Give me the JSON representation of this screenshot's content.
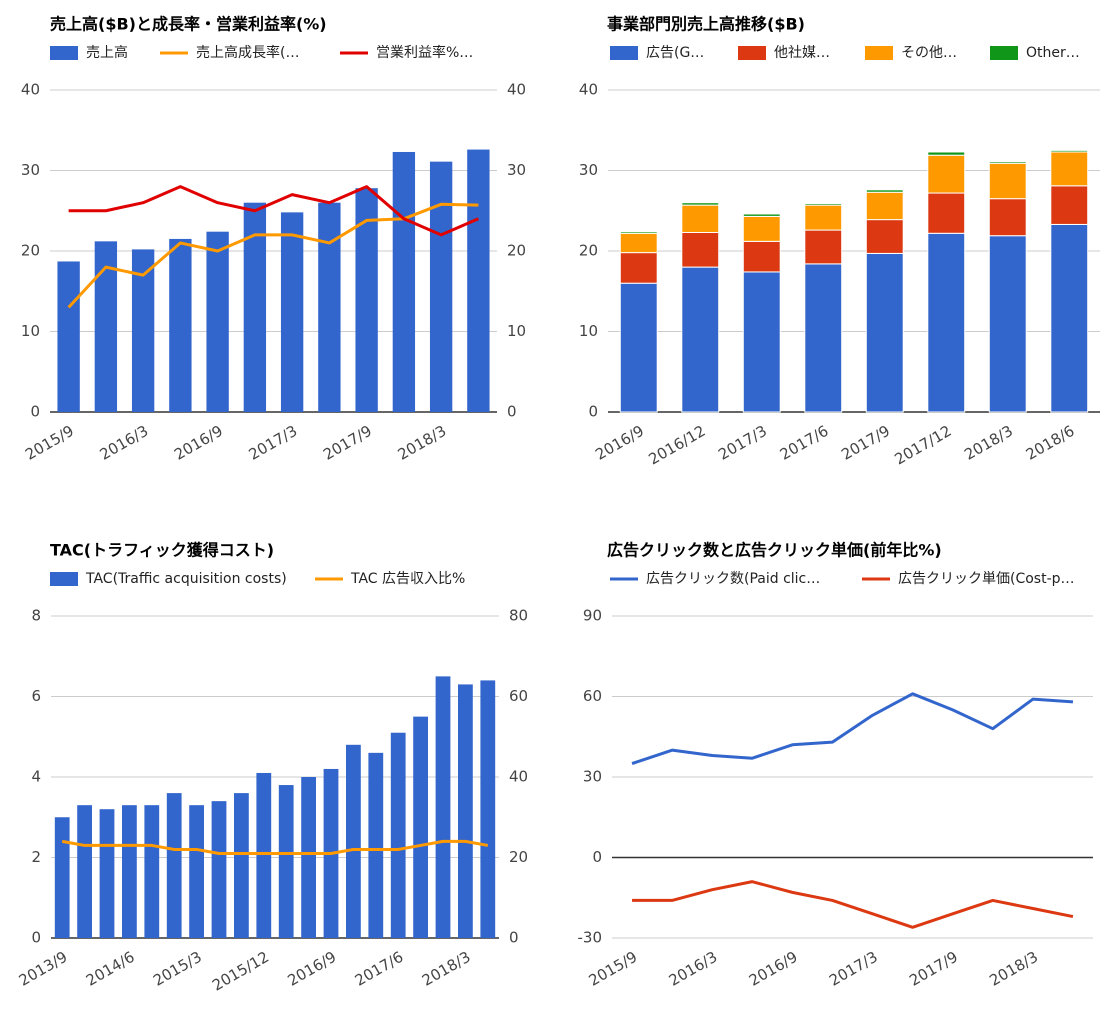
{
  "chart_data": [
    {
      "type": "combo",
      "title": "売上高($B)と成長率・営業利益率(%)",
      "categories": [
        "2015/9",
        null,
        "2016/3",
        null,
        "2016/9",
        null,
        "2017/3",
        null,
        "2017/9",
        null,
        "2018/3",
        null
      ],
      "series": [
        {
          "name": "売上高",
          "type": "bar",
          "color": "#3366cc",
          "values": [
            18.7,
            21.2,
            20.2,
            21.5,
            22.4,
            26.0,
            24.8,
            26.0,
            27.8,
            32.3,
            31.1,
            32.6
          ]
        },
        {
          "name": "売上高成長率(…",
          "type": "line",
          "axis": "y2",
          "color": "#ff9900",
          "values": [
            13,
            18,
            17,
            21,
            20,
            22,
            22,
            21,
            23.8,
            24,
            25.8,
            25.7
          ]
        },
        {
          "name": "営業利益率%…",
          "type": "line",
          "axis": "y2",
          "color": "#e00000",
          "values": [
            25,
            25,
            26,
            28,
            26,
            25,
            27,
            26,
            28,
            24,
            22,
            24
          ]
        }
      ],
      "ylim": [
        0,
        40
      ],
      "yticks": [
        0,
        10,
        20,
        30,
        40
      ],
      "y2lim": [
        0,
        40
      ],
      "y2ticks": [
        0,
        10,
        20,
        30,
        40
      ],
      "grid": true
    },
    {
      "type": "bar",
      "stacked": true,
      "title": "事業部門別売上高推移($B)",
      "categories": [
        "2016/9",
        "2016/12",
        "2017/3",
        "2017/6",
        "2017/9",
        "2017/12",
        "2018/3",
        "2018/6"
      ],
      "series": [
        {
          "name": "広告(G…",
          "color": "#3366cc",
          "values": [
            16.0,
            18.0,
            17.4,
            18.4,
            19.7,
            22.2,
            21.9,
            23.3
          ]
        },
        {
          "name": "他社媒…",
          "color": "#dc3912",
          "values": [
            3.8,
            4.3,
            3.8,
            4.2,
            4.2,
            5.0,
            4.6,
            4.8
          ]
        },
        {
          "name": "その他…",
          "color": "#ff9900",
          "values": [
            2.4,
            3.4,
            3.1,
            3.1,
            3.4,
            4.7,
            4.4,
            4.2
          ]
        },
        {
          "name": "Other…",
          "color": "#109618",
          "values": [
            0.2,
            0.3,
            0.3,
            0.2,
            0.3,
            0.4,
            0.2,
            0.2
          ]
        }
      ],
      "ylim": [
        0,
        40
      ],
      "yticks": [
        0,
        10,
        20,
        30,
        40
      ],
      "grid": true
    },
    {
      "type": "combo",
      "title": "TAC(トラフィック獲得コスト)",
      "categories": [
        "2013/9",
        null,
        null,
        "2014/6",
        null,
        null,
        "2015/3",
        null,
        null,
        "2015/12",
        null,
        null,
        "2016/9",
        null,
        null,
        "2017/6",
        null,
        null,
        "2018/3",
        null
      ],
      "series": [
        {
          "name": "TAC(Traffic acquisition costs)",
          "type": "bar",
          "color": "#3366cc",
          "values": [
            3.0,
            3.3,
            3.2,
            3.3,
            3.3,
            3.6,
            3.3,
            3.4,
            3.6,
            4.1,
            3.8,
            4.0,
            4.2,
            4.8,
            4.6,
            5.1,
            5.5,
            6.5,
            6.3,
            6.4
          ]
        },
        {
          "name": "TAC 広告収入比%",
          "type": "line",
          "axis": "y2",
          "color": "#ff9900",
          "values": [
            24,
            23,
            23,
            23,
            23,
            22,
            22,
            21,
            21,
            21,
            21,
            21,
            21,
            22,
            22,
            22,
            23,
            24,
            24,
            23
          ]
        }
      ],
      "ylim": [
        0,
        8
      ],
      "yticks": [
        0,
        2,
        4,
        6,
        8
      ],
      "y2lim": [
        0,
        80
      ],
      "y2ticks": [
        0,
        20,
        40,
        60,
        80
      ],
      "grid": true
    },
    {
      "type": "line",
      "title": "広告クリック数と広告クリック単価(前年比%)",
      "categories": [
        "2015/9",
        null,
        "2016/3",
        null,
        "2016/9",
        null,
        "2017/3",
        null,
        "2017/9",
        null,
        "2018/3",
        null
      ],
      "series": [
        {
          "name": "広告クリック数(Paid clic…",
          "color": "#3366cc",
          "values": [
            35,
            40,
            38,
            37,
            42,
            43,
            53,
            61,
            55,
            48,
            59,
            58
          ]
        },
        {
          "name": "広告クリック単価(Cost-p…",
          "color": "#dc3912",
          "values": [
            -16,
            -16,
            -12,
            -9,
            -13,
            -16,
            -21,
            -26,
            -21,
            -16,
            -19,
            -22
          ]
        }
      ],
      "ylim": [
        -30,
        90
      ],
      "yticks": [
        -30,
        0,
        30,
        60,
        90
      ],
      "grid": true
    }
  ]
}
